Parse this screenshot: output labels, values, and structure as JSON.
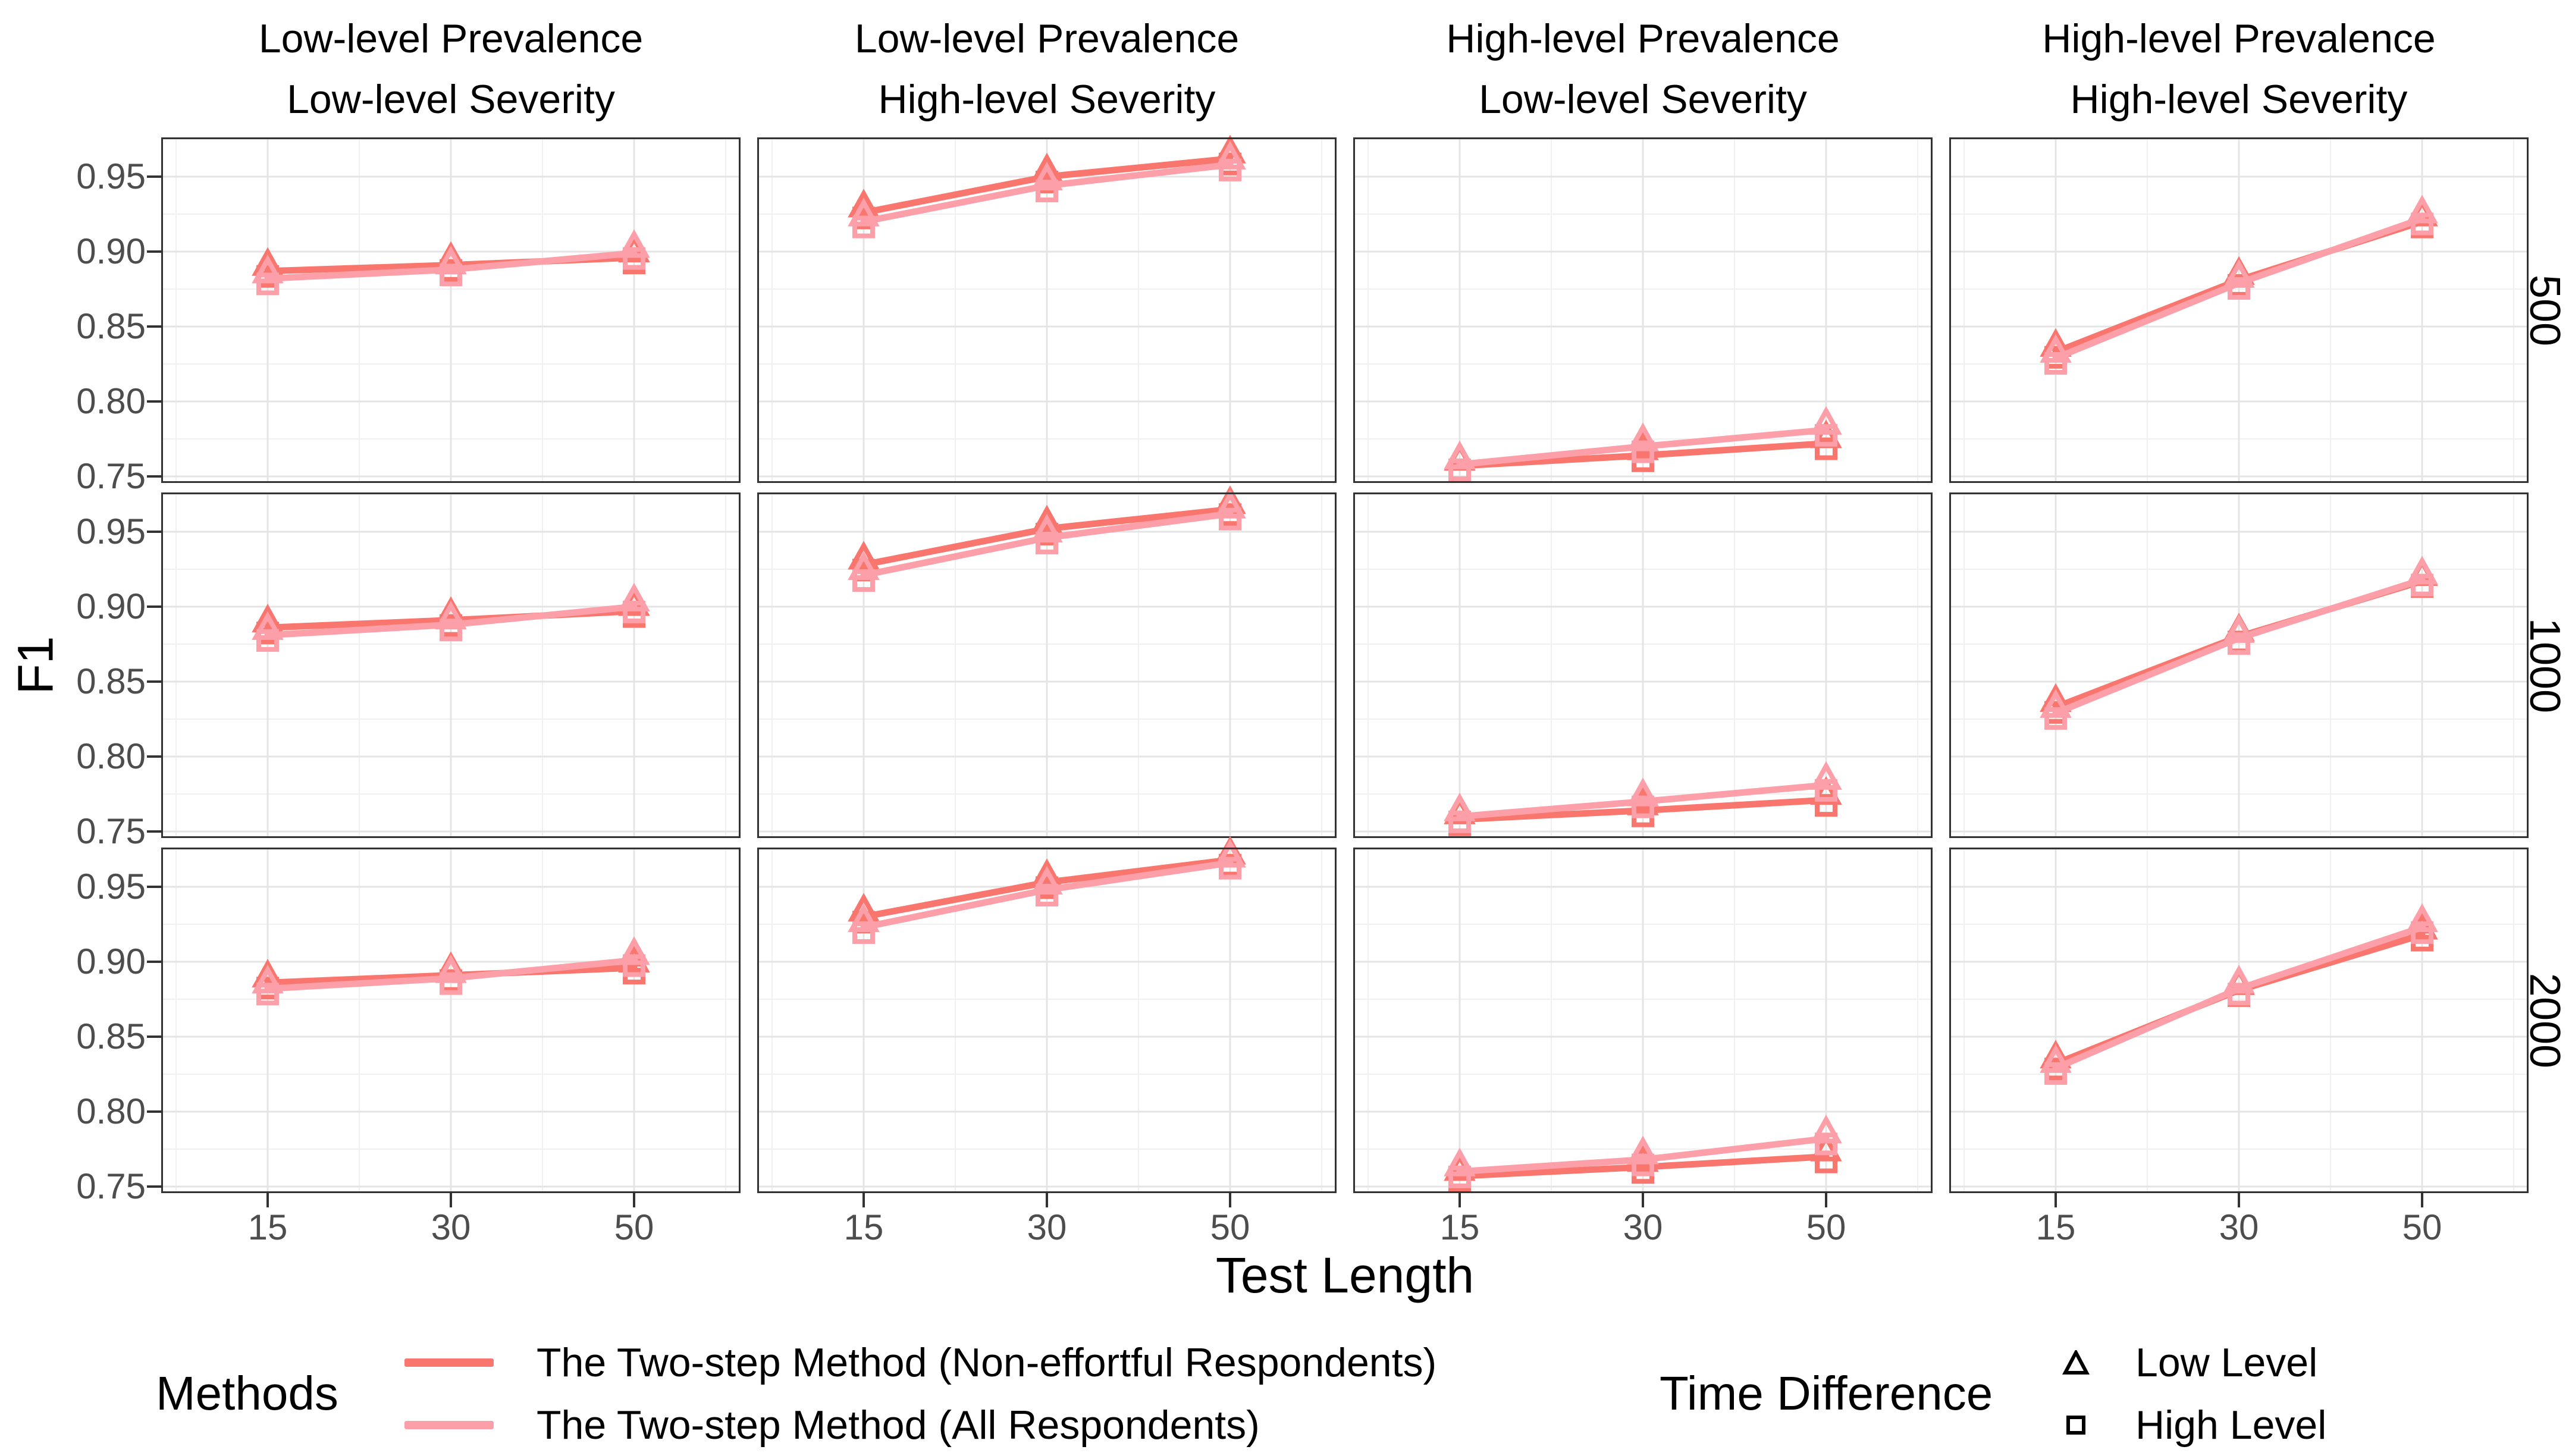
{
  "chart_data": {
    "type": "line",
    "title": "",
    "xlabel": "Test Length",
    "ylabel": "F1",
    "x": [
      15,
      30,
      50
    ],
    "x_labels": [
      "15",
      "30",
      "50"
    ],
    "ylim": [
      0.746,
      0.976
    ],
    "yticks": [
      "0.95",
      "0.90",
      "0.85",
      "0.80",
      "0.75"
    ],
    "ytick_values": [
      0.95,
      0.9,
      0.85,
      0.8,
      0.75
    ],
    "ytick_minor_values": [
      0.975,
      0.925,
      0.875,
      0.825,
      0.775
    ],
    "grid": "major and minor, light gray on white, black panel border",
    "legend_position": "bottom",
    "col_facets": [
      {
        "line1": "Low-level Prevalence",
        "line2": "Low-level Severity"
      },
      {
        "line1": "Low-level Prevalence",
        "line2": "High-level Severity"
      },
      {
        "line1": "High-level Prevalence",
        "line2": "Low-level Severity"
      },
      {
        "line1": "High-level Prevalence",
        "line2": "High-level Severity"
      }
    ],
    "row_facets": [
      "500",
      "1000",
      "2000"
    ],
    "series_colors": {
      "non_effortful": "#F8766D",
      "all": "#FC9FA8"
    },
    "marker_shapes": {
      "low_level": "triangle",
      "high_level": "square"
    },
    "panels": [
      {
        "row": "500",
        "col": "Low-level Prevalence / Low-level Severity",
        "non_effortful": [
          0.887,
          0.891,
          0.896
        ],
        "all": [
          0.882,
          0.888,
          0.899
        ]
      },
      {
        "row": "500",
        "col": "Low-level Prevalence / High-level Severity",
        "non_effortful": [
          0.926,
          0.95,
          0.962
        ],
        "all": [
          0.92,
          0.944,
          0.958
        ]
      },
      {
        "row": "500",
        "col": "High-level Prevalence / Low-level Severity",
        "non_effortful": [
          0.757,
          0.764,
          0.772
        ],
        "all": [
          0.758,
          0.77,
          0.781
        ]
      },
      {
        "row": "500",
        "col": "High-level Prevalence / High-level Severity",
        "non_effortful": [
          0.833,
          0.881,
          0.92
        ],
        "all": [
          0.829,
          0.879,
          0.922
        ]
      },
      {
        "row": "1000",
        "col": "Low-level Prevalence / Low-level Severity",
        "non_effortful": [
          0.886,
          0.891,
          0.897
        ],
        "all": [
          0.881,
          0.888,
          0.9
        ]
      },
      {
        "row": "1000",
        "col": "Low-level Prevalence / High-level Severity",
        "non_effortful": [
          0.928,
          0.952,
          0.965
        ],
        "all": [
          0.921,
          0.946,
          0.962
        ]
      },
      {
        "row": "1000",
        "col": "High-level Prevalence / Low-level Severity",
        "non_effortful": [
          0.758,
          0.764,
          0.771
        ],
        "all": [
          0.76,
          0.77,
          0.781
        ]
      },
      {
        "row": "1000",
        "col": "High-level Prevalence / High-level Severity",
        "non_effortful": [
          0.833,
          0.88,
          0.917
        ],
        "all": [
          0.829,
          0.879,
          0.918
        ]
      },
      {
        "row": "2000",
        "col": "Low-level Prevalence / Low-level Severity",
        "non_effortful": [
          0.886,
          0.891,
          0.896
        ],
        "all": [
          0.882,
          0.889,
          0.901
        ]
      },
      {
        "row": "2000",
        "col": "Low-level Prevalence / High-level Severity",
        "non_effortful": [
          0.93,
          0.953,
          0.968
        ],
        "all": [
          0.923,
          0.948,
          0.966
        ]
      },
      {
        "row": "2000",
        "col": "High-level Prevalence / Low-level Severity",
        "non_effortful": [
          0.757,
          0.763,
          0.77
        ],
        "all": [
          0.76,
          0.768,
          0.782
        ]
      },
      {
        "row": "2000",
        "col": "High-level Prevalence / High-level Severity",
        "non_effortful": [
          0.832,
          0.881,
          0.918
        ],
        "all": [
          0.829,
          0.882,
          0.923
        ]
      }
    ]
  },
  "legend": {
    "methods": {
      "title": "Methods",
      "items": [
        {
          "label": "The Two-step Method (Non-effortful Respondents)",
          "color": "#F8766D"
        },
        {
          "label": "The Two-step Method (All Respondents)",
          "color": "#FC9FA8"
        }
      ]
    },
    "time_difference": {
      "title": "Time Difference",
      "items": [
        {
          "label": "Low Level",
          "shape": "triangle"
        },
        {
          "label": "High Level",
          "shape": "square"
        }
      ]
    }
  }
}
